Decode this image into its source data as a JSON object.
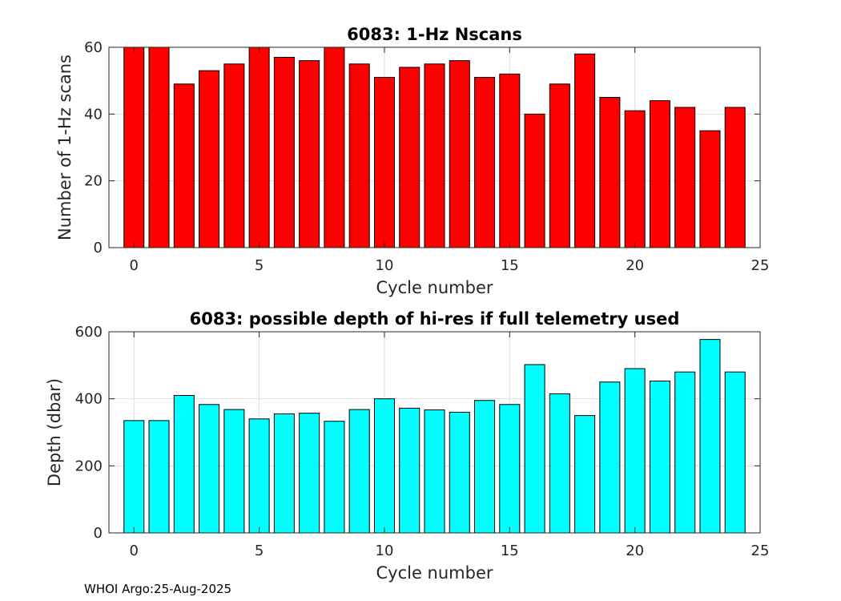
{
  "chart_data": [
    {
      "type": "bar",
      "title": "6083: 1-Hz Nscans",
      "xlabel": "Cycle number",
      "ylabel": "Number of 1-Hz scans",
      "x": [
        0,
        1,
        2,
        3,
        4,
        5,
        6,
        7,
        8,
        9,
        10,
        11,
        12,
        13,
        14,
        15,
        16,
        17,
        18,
        19,
        20,
        21,
        22,
        23,
        24
      ],
      "values": [
        60,
        60,
        49,
        53,
        55,
        60,
        57,
        56,
        60,
        55,
        51,
        54,
        55,
        56,
        51,
        52,
        40,
        49,
        58,
        45,
        41,
        44,
        42,
        35,
        42
      ],
      "xlim": [
        -1,
        25
      ],
      "ylim": [
        0,
        60
      ],
      "xticks": [
        0,
        5,
        10,
        15,
        20,
        25
      ],
      "yticks": [
        0,
        20,
        40,
        60
      ],
      "color": "#ff0000",
      "grid": true
    },
    {
      "type": "bar",
      "title": "6083: possible depth of hi-res if full telemetry used",
      "xlabel": "Cycle number",
      "ylabel": "Depth (dbar)",
      "x": [
        0,
        1,
        2,
        3,
        4,
        5,
        6,
        7,
        8,
        9,
        10,
        11,
        12,
        13,
        14,
        15,
        16,
        17,
        18,
        19,
        20,
        21,
        22,
        23,
        24
      ],
      "values": [
        335,
        335,
        410,
        383,
        368,
        340,
        355,
        357,
        333,
        368,
        400,
        372,
        367,
        360,
        395,
        383,
        502,
        415,
        350,
        450,
        490,
        453,
        480,
        577,
        480
      ],
      "xlim": [
        -1,
        25
      ],
      "ylim": [
        0,
        600
      ],
      "xticks": [
        0,
        5,
        10,
        15,
        20,
        25
      ],
      "yticks": [
        0,
        200,
        400,
        600
      ],
      "color": "#00ffff",
      "grid": true
    }
  ],
  "footer": "WHOI Argo:25-Aug-2025"
}
